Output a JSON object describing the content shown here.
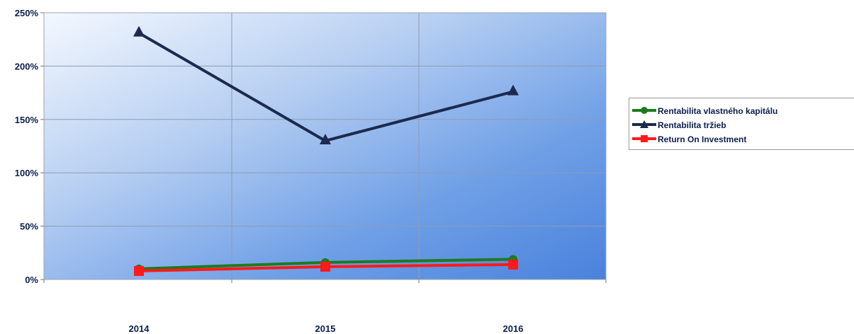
{
  "chart_data": {
    "type": "line",
    "categories": [
      "2014",
      "2015",
      "2016"
    ],
    "y_ticks": [
      "0%",
      "50%",
      "100%",
      "150%",
      "200%",
      "250%"
    ],
    "ylim": [
      0,
      250
    ],
    "grid": true,
    "legend_position": "right",
    "series": [
      {
        "name": "Rentabilita vlastného kapitálu",
        "values": [
          10,
          16,
          19
        ],
        "color": "#1e7a1e",
        "marker": "circle"
      },
      {
        "name": "Rentabilita tržieb",
        "values": [
          231,
          130,
          176
        ],
        "color": "#1b2a4e",
        "marker": "triangle"
      },
      {
        "name": "Return On Investment",
        "values": [
          8,
          12,
          14
        ],
        "color": "#ff1a1a",
        "marker": "square"
      }
    ]
  }
}
